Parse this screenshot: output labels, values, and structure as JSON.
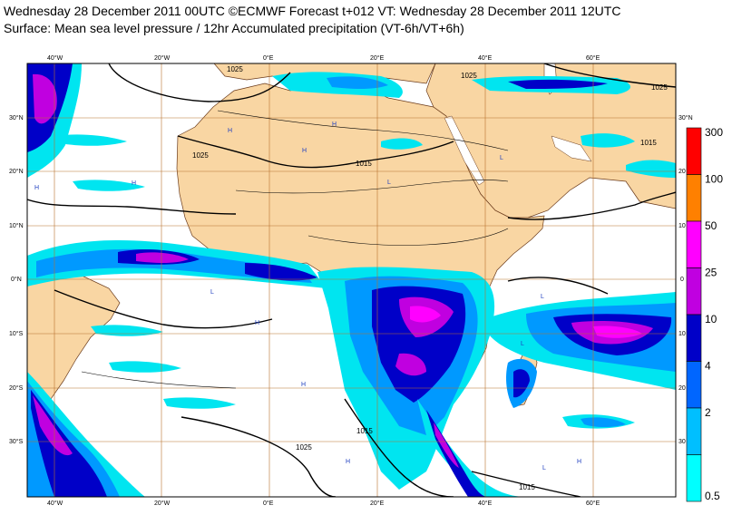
{
  "header": {
    "line1": "Wednesday 28 December 2011 00UTC ©ECMWF Forecast t+012 VT: Wednesday 28 December 2011 12UTC",
    "line2": "Surface: Mean sea level pressure / 12hr Accumulated precipitation (VT-6h/VT+6h)"
  },
  "colors": {
    "land": "#f9d6a3",
    "sea": "#ffffff",
    "grid": "#b8722e",
    "precip_light": "#00e5f0",
    "precip_mid": "#0099ff",
    "precip_dark": "#0000c8",
    "precip_violet": "#7a00d8",
    "precip_magenta": "#ff00ff",
    "highlow": "#2040c0"
  },
  "axes": {
    "lon_top": [
      "40°W",
      "20°W",
      "0°E",
      "20°E",
      "40°E",
      "60°E"
    ],
    "lon_bottom": [
      "40°W",
      "20°W",
      "0°E",
      "20°E",
      "40°E",
      "60°E"
    ],
    "lat_left": [
      "30°N",
      "20°N",
      "10°N",
      "0°N",
      "10°S",
      "20°S",
      "30°S"
    ],
    "lat_right": [
      "30°N",
      "20",
      "10",
      "0",
      "10",
      "20",
      "30"
    ]
  },
  "isobar_labels": [
    "1025",
    "1025",
    "1025",
    "1025",
    "1015",
    "1015",
    "1025",
    "1015",
    "1015"
  ],
  "pressure_marks": [
    "H",
    "H",
    "H",
    "H",
    "H",
    "L",
    "L",
    "L",
    "L",
    "L",
    "H",
    "H",
    "L",
    "H",
    "H"
  ],
  "legend": {
    "labels": [
      "300",
      "100",
      "50",
      "25",
      "10",
      "4",
      "2",
      "0.5"
    ],
    "colors": [
      "#ff0000",
      "#ff8000",
      "#ff00ff",
      "#c000e0",
      "#0000c8",
      "#0066ff",
      "#00bfff",
      "#00ffff"
    ]
  }
}
